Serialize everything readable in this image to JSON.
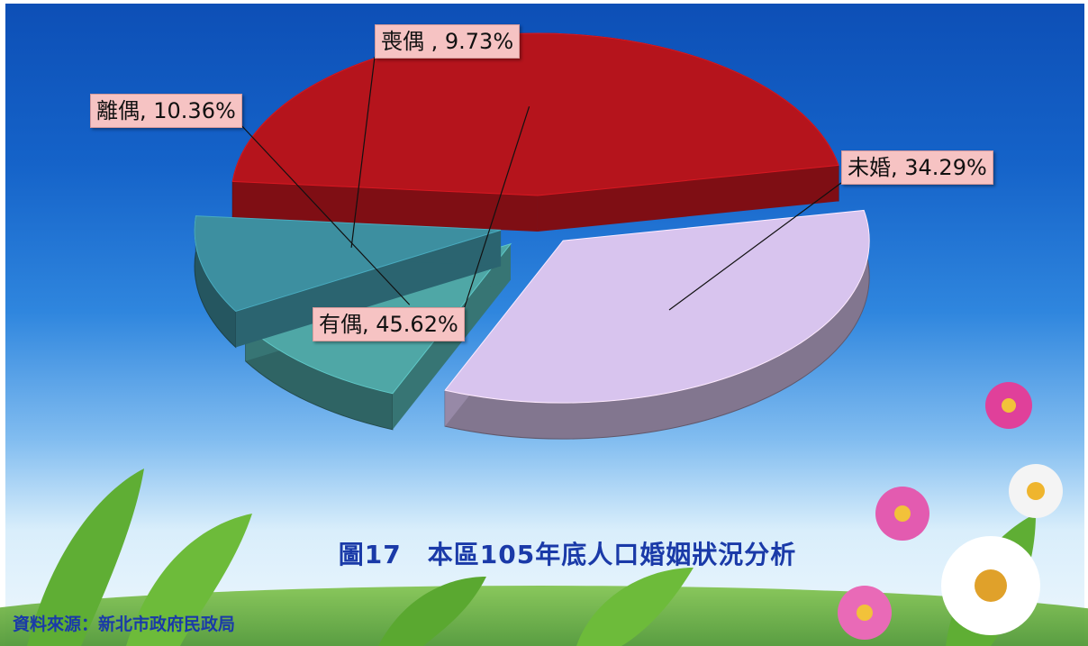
{
  "chart_data": {
    "type": "pie",
    "title": "圖17　本區105年底人口婚姻狀況分析",
    "source": "資料來源：新北市政府民政局",
    "slices": [
      {
        "category": "有偶",
        "label": "有偶, 45.62%",
        "value": 45.62,
        "color": "#b5141c"
      },
      {
        "category": "未婚",
        "label": "未婚, 34.29%",
        "value": 34.29,
        "color": "#d8c4ee"
      },
      {
        "category": "離偶",
        "label": "離偶, 10.36%",
        "value": 10.36,
        "color": "#4fa7a6"
      },
      {
        "category": "喪偶",
        "label": "喪偶 , 9.73%",
        "value": 9.73,
        "color": "#3d8fa0"
      }
    ]
  }
}
